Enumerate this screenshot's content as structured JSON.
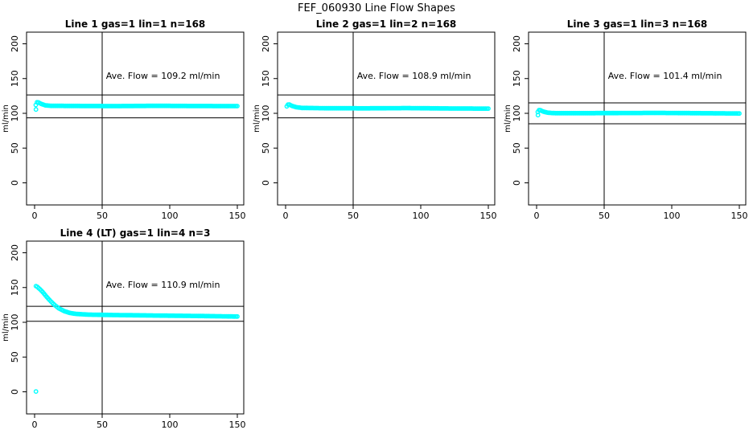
{
  "page": {
    "title": "FEF_060930  Line Flow Shapes",
    "background": "#ffffff",
    "accent_color": "#00FFFF",
    "axis_color": "#000000"
  },
  "chart_data": [
    {
      "type": "scatter",
      "title": "Line 1 gas=1 lin=1 n=168",
      "annotation": "Ave. Flow =  109.2  ml/min",
      "ave_flow_ml_min": 109.2,
      "n_points": 168,
      "xlabel": "",
      "ylabel": "ml/min",
      "xlim": [
        0,
        150
      ],
      "ylim": [
        0,
        200
      ],
      "xticks": [
        0,
        50,
        100,
        150
      ],
      "yticks": [
        0,
        50,
        100,
        150,
        200
      ],
      "vline_x": 50,
      "hlines": [
        126.5,
        93.5
      ],
      "marker_color": "#00FFFF",
      "series_anchors": [
        [
          0.9,
          112
        ],
        [
          1.8,
          115.8
        ],
        [
          3,
          115.5
        ],
        [
          5,
          113.5
        ],
        [
          8,
          111.5
        ],
        [
          12,
          110.8
        ],
        [
          30,
          110.6
        ],
        [
          60,
          110.4
        ],
        [
          90,
          110.8
        ],
        [
          120,
          110.5
        ],
        [
          150,
          110.4
        ]
      ],
      "outliers": [
        [
          1,
          105.5
        ]
      ]
    },
    {
      "type": "scatter",
      "title": "Line 2 gas=1 lin=2 n=168",
      "annotation": "Ave. Flow =  108.9  ml/min",
      "ave_flow_ml_min": 108.9,
      "n_points": 168,
      "xlabel": "",
      "ylabel": "ml/min",
      "xlim": [
        0,
        150
      ],
      "ylim": [
        0,
        200
      ],
      "xticks": [
        0,
        50,
        100,
        150
      ],
      "yticks": [
        0,
        50,
        100,
        150,
        200
      ],
      "vline_x": 50,
      "hlines": [
        126.5,
        93.5
      ],
      "marker_color": "#00FFFF",
      "series_anchors": [
        [
          0.9,
          110
        ],
        [
          1.8,
          112.6
        ],
        [
          3,
          112.4
        ],
        [
          5,
          110.5
        ],
        [
          8,
          108.8
        ],
        [
          12,
          107.8
        ],
        [
          30,
          107.3
        ],
        [
          60,
          107.2
        ],
        [
          90,
          107.5
        ],
        [
          120,
          107.0
        ],
        [
          150,
          106.8
        ]
      ],
      "outliers": []
    },
    {
      "type": "scatter",
      "title": "Line 3 gas=1 lin=3 n=168",
      "annotation": "Ave. Flow =  101.4  ml/min",
      "ave_flow_ml_min": 101.4,
      "n_points": 168,
      "xlabel": "",
      "ylabel": "ml/min",
      "xlim": [
        0,
        150
      ],
      "ylim": [
        0,
        200
      ],
      "xticks": [
        0,
        50,
        100,
        150
      ],
      "yticks": [
        0,
        50,
        100,
        150,
        200
      ],
      "vline_x": 50,
      "hlines": [
        115,
        85
      ],
      "marker_color": "#00FFFF",
      "series_anchors": [
        [
          0.9,
          102
        ],
        [
          1.8,
          104.6
        ],
        [
          3,
          104.3
        ],
        [
          5,
          102.5
        ],
        [
          8,
          101.0
        ],
        [
          12,
          100.3
        ],
        [
          30,
          100.2
        ],
        [
          60,
          100.4
        ],
        [
          90,
          100.6
        ],
        [
          120,
          100.2
        ],
        [
          150,
          99.8
        ]
      ],
      "outliers": [
        [
          1,
          97.5
        ]
      ]
    },
    {
      "type": "scatter",
      "title": "Line 4 (LT) gas=1 lin=4 n=3",
      "annotation": "Ave. Flow =  110.9  ml/min",
      "ave_flow_ml_min": 110.9,
      "n_points": 3,
      "xlabel": "",
      "ylabel": "ml/min",
      "xlim": [
        0,
        150
      ],
      "ylim": [
        0,
        200
      ],
      "xticks": [
        0,
        50,
        100,
        150
      ],
      "yticks": [
        0,
        50,
        100,
        150,
        200
      ],
      "vline_x": 50,
      "hlines": [
        123,
        101.5
      ],
      "marker_color": "#00FFFF",
      "series_anchors": [
        [
          1,
          152
        ],
        [
          2,
          151
        ],
        [
          4,
          147.5
        ],
        [
          6,
          143.5
        ],
        [
          9,
          136.5
        ],
        [
          12,
          130
        ],
        [
          15,
          124.5
        ],
        [
          18,
          120
        ],
        [
          22,
          116
        ],
        [
          26,
          113.5
        ],
        [
          30,
          112.2
        ],
        [
          40,
          111
        ],
        [
          60,
          110.4
        ],
        [
          90,
          109.7
        ],
        [
          120,
          109.1
        ],
        [
          150,
          108.3
        ]
      ],
      "outliers": [
        [
          1,
          0.5
        ]
      ]
    }
  ]
}
